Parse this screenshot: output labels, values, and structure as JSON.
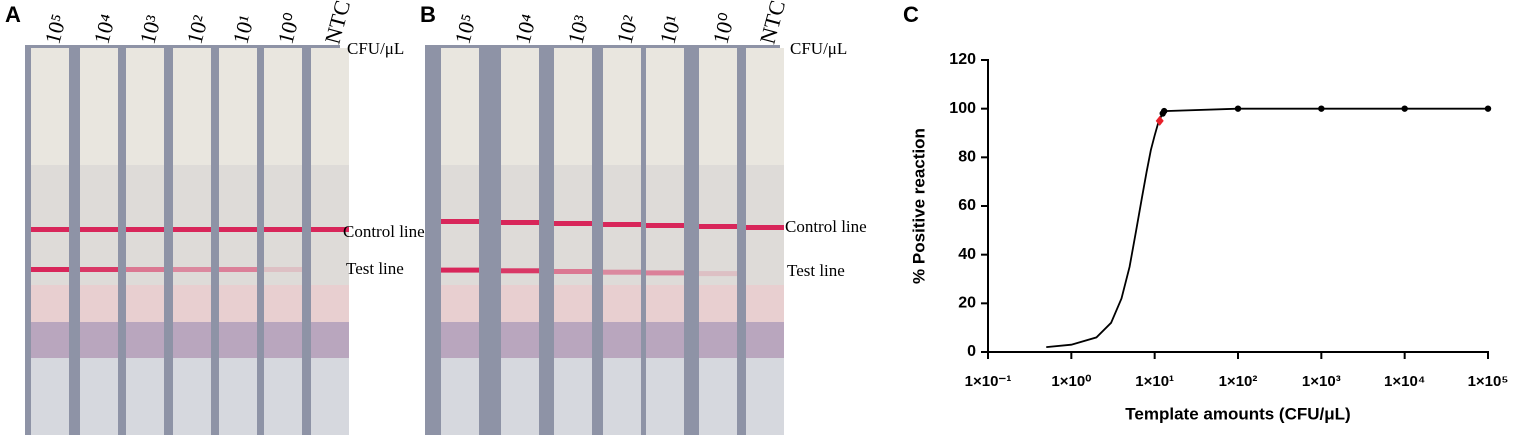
{
  "panels": [
    {
      "label": "A",
      "concentrations": [
        "10⁵",
        "10⁴",
        "10³",
        "10²",
        "10¹",
        "10⁰",
        "NTC"
      ],
      "unit": "CFU/μL",
      "control_line": "Control line",
      "test_line": "Test line"
    },
    {
      "label": "B",
      "concentrations": [
        "10⁵",
        "10⁴",
        "10³",
        "10²",
        "10¹",
        "10⁰",
        "NTC"
      ],
      "unit": "CFU/μL",
      "control_line": "Control line",
      "test_line": "Test line"
    }
  ],
  "chart_data": {
    "type": "line",
    "label": "C",
    "x_label": "Template amounts (CFU/μL)",
    "y_label": "% Positive reaction",
    "log_x": true,
    "xlim": [
      0.1,
      100000
    ],
    "xticks": [
      {
        "value": 0.1,
        "label": "1×10⁻¹"
      },
      {
        "value": 1,
        "label": "1×10⁰"
      },
      {
        "value": 10,
        "label": "1×10¹"
      },
      {
        "value": 100,
        "label": "1×10²"
      },
      {
        "value": 1000,
        "label": "1×10³"
      },
      {
        "value": 10000,
        "label": "1×10⁴"
      },
      {
        "value": 100000,
        "label": "1×10⁵"
      }
    ],
    "ylim": [
      0,
      120
    ],
    "yticks": [
      0,
      20,
      40,
      60,
      80,
      100,
      120
    ],
    "series": [
      {
        "color": "#000000",
        "marker": "none",
        "x": [
          0.5,
          1,
          2,
          3,
          4,
          5,
          6,
          7,
          8,
          9,
          10,
          11,
          12,
          13,
          100,
          1000,
          10000,
          100000
        ],
        "values": [
          2,
          3,
          6,
          12,
          22,
          35,
          50,
          63,
          74,
          83,
          89,
          94,
          97,
          99,
          100,
          100,
          100,
          100
        ]
      },
      {
        "color": "#000000",
        "marker": "circle",
        "x": [
          12.5,
          13,
          100,
          1000,
          10000,
          100000
        ],
        "values": [
          98,
          99,
          100,
          100,
          100,
          100
        ]
      },
      {
        "color": "#e8202a",
        "marker": "diamond",
        "x": [
          11.5
        ],
        "values": [
          95
        ]
      }
    ]
  }
}
